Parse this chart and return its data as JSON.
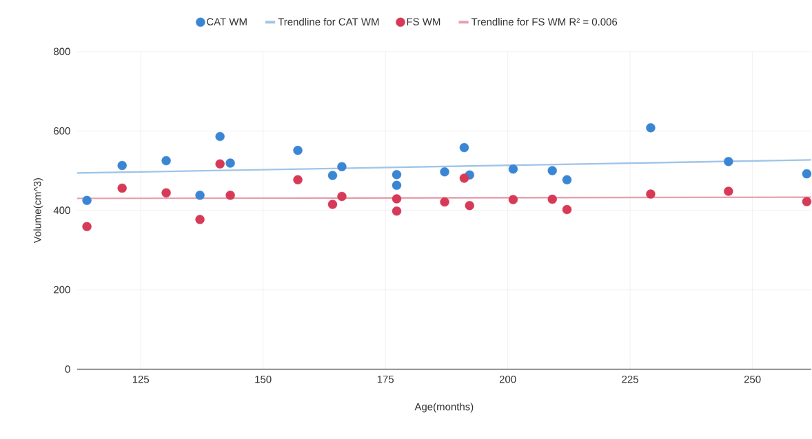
{
  "chart_data": {
    "type": "scatter",
    "xlabel": "Age(months)",
    "ylabel": "Volume(cm^3)",
    "xlim": [
      112,
      262
    ],
    "ylim": [
      0,
      800
    ],
    "xticks": [
      125,
      150,
      175,
      200,
      225,
      250
    ],
    "yticks": [
      0,
      200,
      400,
      600,
      800
    ],
    "grid": true,
    "legend": "top",
    "marker": "circle",
    "series": [
      {
        "name": "CAT WM",
        "color": "#3a86d4",
        "x": [
          114,
          121.2,
          130.2,
          137.1,
          141.2,
          143.3,
          157.1,
          164.2,
          166.1,
          177.3,
          177.3,
          187.1,
          191.1,
          192.2,
          201.1,
          209.1,
          212.1,
          229.2,
          245.1,
          261.1
        ],
        "values": [
          425,
          513,
          525,
          438,
          586,
          519,
          551,
          488,
          510,
          490,
          463,
          497,
          558,
          489,
          504,
          500,
          477,
          608,
          523,
          492
        ]
      },
      {
        "name": "Trendline for CAT WM",
        "type": "line",
        "marker": "none",
        "color": "#9fc5e8",
        "x": [
          112,
          262
        ],
        "values": [
          494,
          527
        ]
      },
      {
        "name": "FS WM",
        "color": "#d63a57",
        "x": [
          114,
          121.2,
          130.2,
          137.1,
          141.2,
          143.3,
          157.1,
          164.2,
          166.1,
          177.3,
          177.3,
          187.1,
          191.1,
          192.2,
          201.1,
          209.1,
          212.1,
          229.2,
          245.1,
          261.1
        ],
        "values": [
          359,
          456,
          444,
          377,
          517,
          438,
          477,
          415,
          435,
          429,
          398,
          421,
          481,
          412,
          427,
          428,
          402,
          441,
          448,
          422
        ]
      },
      {
        "name": "Trendline for FS WM R² = 0.006",
        "type": "line",
        "marker": "none",
        "color": "#e8a0ad",
        "x": [
          112,
          262
        ],
        "values": [
          430,
          433
        ]
      }
    ]
  }
}
